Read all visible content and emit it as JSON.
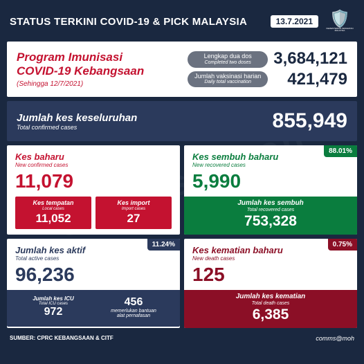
{
  "colors": {
    "bg": "#1a2840",
    "white": "#ffffff",
    "red": "#c41230",
    "green": "#0a7d3e",
    "navy": "#2b3a5c",
    "darkred": "#8b0f26",
    "pill": "#6b7280"
  },
  "header": {
    "title": "STATUS TERKINI COVID-19 & PICK MALAYSIA",
    "date": "13.7.2021",
    "logo_text": "KEMENTERIAN KESIHATAN MALAYSIA"
  },
  "vaccination": {
    "title_line1": "Program Imunisasi",
    "title_line2": "COVID-19 Kebangsaan",
    "subtitle": "(Sehingga 12/7/2021)",
    "pill1_label": "Lengkap dua dos",
    "pill1_sub": "Completed two doses",
    "pill2_label": "Jumlah vaksinasi harian",
    "pill2_sub": "Daily total vaccination",
    "num1": "3,684,121",
    "num2": "421,479"
  },
  "total_cases": {
    "label": "Jumlah kes keseluruhan",
    "sub": "Total confirmed cases",
    "num": "855,949"
  },
  "new_cases": {
    "title": "Kes baharu",
    "title_sub": "New confirmed cases",
    "num": "11,079",
    "local_label": "Kes tempatan",
    "local_sub": "Local cases",
    "local_num": "11,052",
    "import_label": "Kes import",
    "import_sub": "Import cases",
    "import_num": "27",
    "color": "#c41230",
    "box_bg": "#c41230"
  },
  "recovered": {
    "title": "Kes sembuh baharu",
    "title_sub": "New recovered cases",
    "num": "5,990",
    "total_label": "Jumlah kes sembuh",
    "total_sub": "Total recovered cases",
    "total_num": "753,328",
    "badge": "88.01%",
    "color": "#0a7d3e",
    "band_bg": "#0a7d3e"
  },
  "active": {
    "title": "Jumlah kes aktif",
    "title_sub": "Total active cases",
    "num": "96,236",
    "badge": "11.24%",
    "icu_label": "Jumlah kes ICU",
    "icu_sub": "Total ICU cases",
    "icu_num": "972",
    "vent_num": "456",
    "vent_label1": "memerlukan bantuan",
    "vent_label2": "alat pernafasan",
    "color": "#2b3a5c",
    "band_bg": "#2b3a5c"
  },
  "deaths": {
    "title": "Kes kematian baharu",
    "title_sub": "New death cases",
    "num": "125",
    "badge": "0.75%",
    "total_label": "Jumlah kes kematian",
    "total_sub": "Total death cases",
    "total_num": "6,385",
    "color": "#8b0f26",
    "band_bg": "#8b0f26"
  },
  "footer": {
    "source": "SUMBER: CPRC KEBANGSAAN & CITF",
    "handle": "comms@moh"
  },
  "watermark": "comms@moh"
}
